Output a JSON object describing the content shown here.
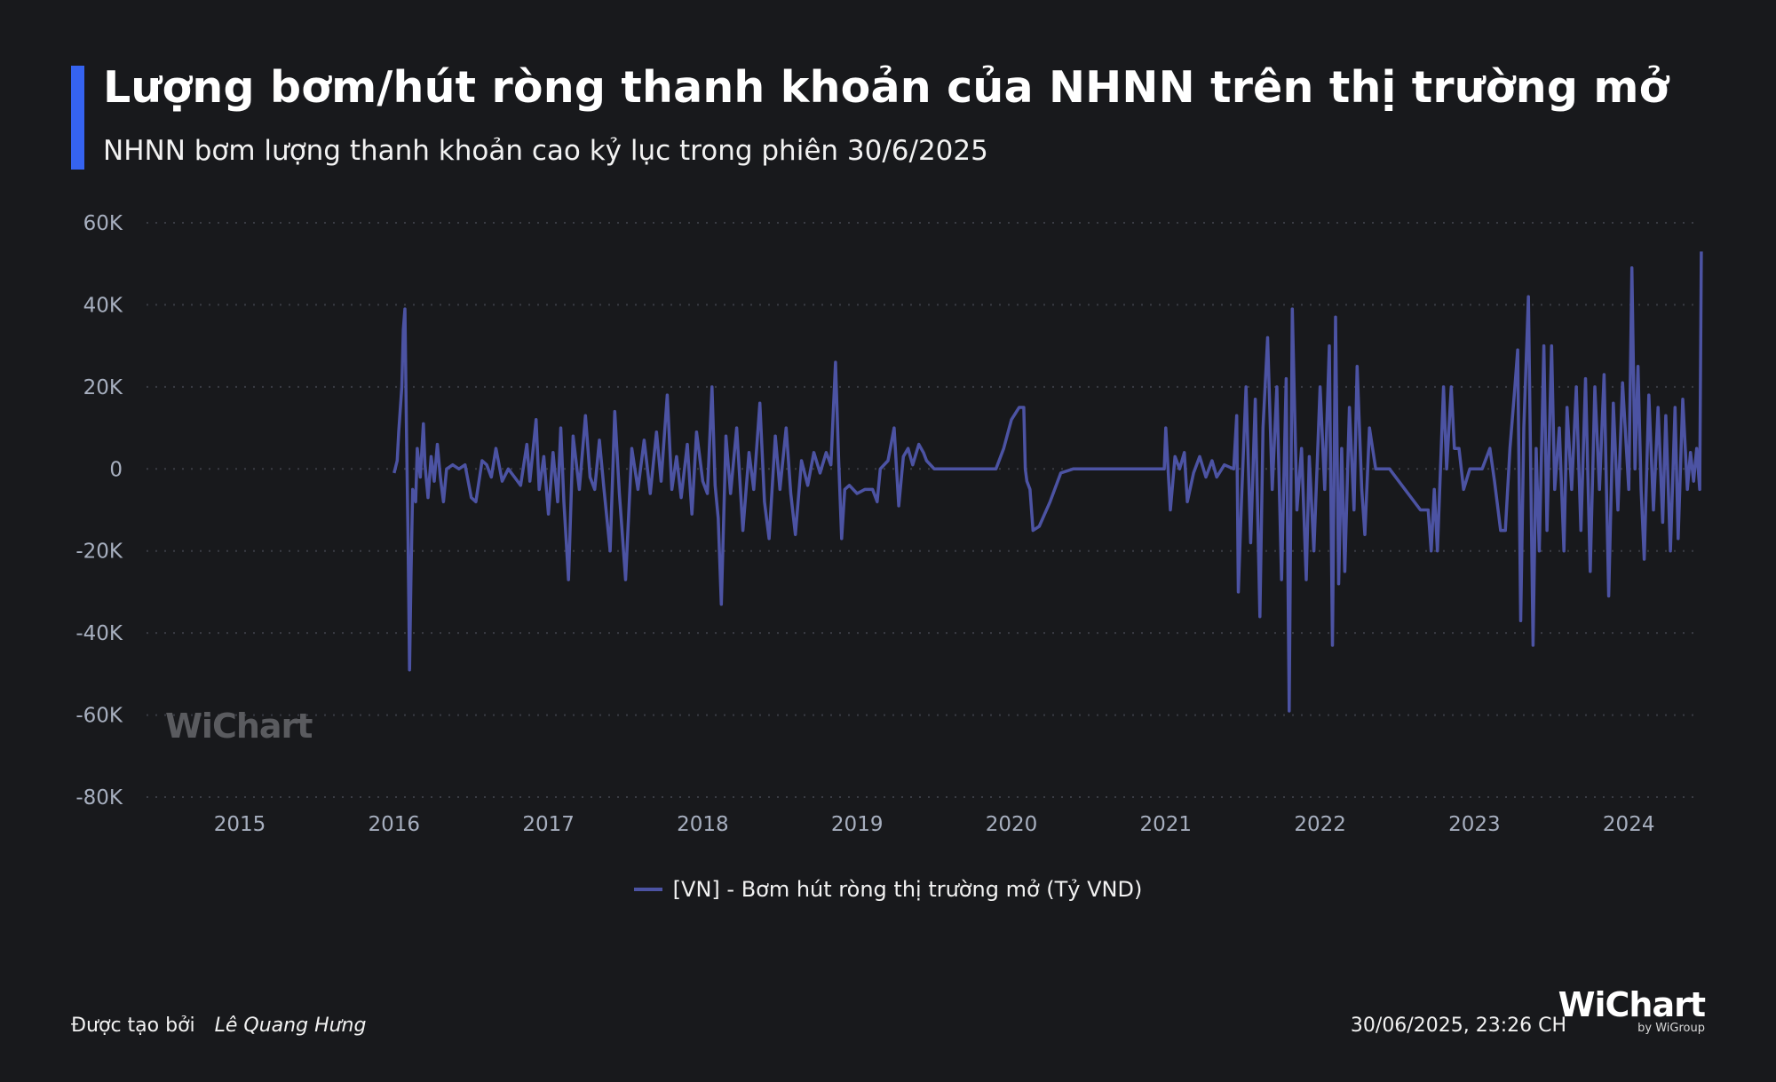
{
  "header": {
    "title": "Lượng bơm/hút ròng thanh khoản của NHNN trên thị trường mở",
    "subtitle": "NHNN bơm lượng thanh khoản cao kỷ lục trong phiên 30/6/2025",
    "accent_color": "#3563f0"
  },
  "watermark": {
    "text": "WiChart"
  },
  "legend": {
    "label": "[VN] - Bơm hút ròng thị trường mở (Tỷ VND)",
    "color": "#4c53a3"
  },
  "footer": {
    "created_by_label": "Được tạo bởi",
    "author": "Lê Quang Hưng",
    "timestamp": "30/06/2025, 23:26 CH",
    "brand_name": "WiChart",
    "brand_sub": "by WiGroup"
  },
  "chart_data": {
    "type": "line",
    "title": "Lượng bơm/hút ròng thanh khoản của NHNN trên thị trường mở",
    "subtitle": "NHNN bơm lượng thanh khoản cao kỷ lục trong phiên 30/6/2025",
    "xlabel": "",
    "ylabel": "",
    "x_ticks": [
      "2015",
      "2016",
      "2017",
      "2018",
      "2019",
      "2020",
      "2021",
      "2022",
      "2023",
      "2024"
    ],
    "y_ticks": [
      "60K",
      "40K",
      "20K",
      "0",
      "-20K",
      "-40K",
      "-60K",
      "-80K"
    ],
    "ylim": [
      -80000,
      60000
    ],
    "xlim": [
      2014.4,
      2024.47
    ],
    "grid": "horizontal-dotted",
    "legend_position": "bottom-center",
    "series": [
      {
        "name": "[VN] - Bơm hút ròng thị trường mở (Tỷ VND)",
        "color": "#4c53a3",
        "points": [
          [
            2016.0,
            -1000
          ],
          [
            2016.02,
            2000
          ],
          [
            2016.03,
            9000
          ],
          [
            2016.05,
            20000
          ],
          [
            2016.06,
            34000
          ],
          [
            2016.07,
            39000
          ],
          [
            2016.08,
            10000
          ],
          [
            2016.09,
            -15000
          ],
          [
            2016.1,
            -49000
          ],
          [
            2016.11,
            -25000
          ],
          [
            2016.12,
            -5000
          ],
          [
            2016.14,
            -8000
          ],
          [
            2016.15,
            5000
          ],
          [
            2016.17,
            -2000
          ],
          [
            2016.19,
            11000
          ],
          [
            2016.2,
            1000
          ],
          [
            2016.22,
            -7000
          ],
          [
            2016.24,
            3000
          ],
          [
            2016.26,
            -3000
          ],
          [
            2016.28,
            6000
          ],
          [
            2016.3,
            -2000
          ],
          [
            2016.32,
            -8000
          ],
          [
            2016.34,
            0
          ],
          [
            2016.38,
            1000
          ],
          [
            2016.42,
            0
          ],
          [
            2016.46,
            1000
          ],
          [
            2016.5,
            -7000
          ],
          [
            2016.53,
            -8000
          ],
          [
            2016.57,
            2000
          ],
          [
            2016.6,
            1000
          ],
          [
            2016.63,
            -2000
          ],
          [
            2016.66,
            5000
          ],
          [
            2016.7,
            -3000
          ],
          [
            2016.74,
            0
          ],
          [
            2016.78,
            -2000
          ],
          [
            2016.82,
            -4000
          ],
          [
            2016.86,
            6000
          ],
          [
            2016.88,
            -3000
          ],
          [
            2016.92,
            12000
          ],
          [
            2016.94,
            -5000
          ],
          [
            2016.97,
            3000
          ],
          [
            2017.0,
            -11000
          ],
          [
            2017.03,
            4000
          ],
          [
            2017.06,
            -8000
          ],
          [
            2017.08,
            10000
          ],
          [
            2017.1,
            -8000
          ],
          [
            2017.13,
            -27000
          ],
          [
            2017.16,
            8000
          ],
          [
            2017.2,
            -5000
          ],
          [
            2017.24,
            13000
          ],
          [
            2017.27,
            -2000
          ],
          [
            2017.3,
            -5000
          ],
          [
            2017.33,
            7000
          ],
          [
            2017.36,
            -5000
          ],
          [
            2017.4,
            -20000
          ],
          [
            2017.43,
            14000
          ],
          [
            2017.46,
            -6000
          ],
          [
            2017.5,
            -27000
          ],
          [
            2017.54,
            5000
          ],
          [
            2017.58,
            -5000
          ],
          [
            2017.62,
            7000
          ],
          [
            2017.66,
            -6000
          ],
          [
            2017.7,
            9000
          ],
          [
            2017.73,
            -3000
          ],
          [
            2017.77,
            18000
          ],
          [
            2017.8,
            -5000
          ],
          [
            2017.83,
            3000
          ],
          [
            2017.86,
            -7000
          ],
          [
            2017.9,
            6000
          ],
          [
            2017.93,
            -11000
          ],
          [
            2017.96,
            9000
          ],
          [
            2018.0,
            -3000
          ],
          [
            2018.03,
            -6000
          ],
          [
            2018.06,
            20000
          ],
          [
            2018.08,
            -4000
          ],
          [
            2018.1,
            -12000
          ],
          [
            2018.12,
            -33000
          ],
          [
            2018.15,
            8000
          ],
          [
            2018.18,
            -6000
          ],
          [
            2018.22,
            10000
          ],
          [
            2018.26,
            -15000
          ],
          [
            2018.3,
            4000
          ],
          [
            2018.33,
            -5000
          ],
          [
            2018.37,
            16000
          ],
          [
            2018.4,
            -8000
          ],
          [
            2018.43,
            -17000
          ],
          [
            2018.47,
            8000
          ],
          [
            2018.5,
            -5000
          ],
          [
            2018.54,
            10000
          ],
          [
            2018.57,
            -6000
          ],
          [
            2018.6,
            -16000
          ],
          [
            2018.64,
            2000
          ],
          [
            2018.68,
            -4000
          ],
          [
            2018.72,
            4000
          ],
          [
            2018.76,
            -1000
          ],
          [
            2018.8,
            4000
          ],
          [
            2018.83,
            1000
          ],
          [
            2018.86,
            26000
          ],
          [
            2018.88,
            3000
          ],
          [
            2018.9,
            -17000
          ],
          [
            2018.92,
            -5000
          ],
          [
            2018.95,
            -4000
          ],
          [
            2019.0,
            -6000
          ],
          [
            2019.05,
            -5000
          ],
          [
            2019.1,
            -5000
          ],
          [
            2019.13,
            -8000
          ],
          [
            2019.15,
            0
          ],
          [
            2019.2,
            2000
          ],
          [
            2019.24,
            10000
          ],
          [
            2019.27,
            -9000
          ],
          [
            2019.3,
            3000
          ],
          [
            2019.33,
            5000
          ],
          [
            2019.36,
            1000
          ],
          [
            2019.4,
            6000
          ],
          [
            2019.43,
            4000
          ],
          [
            2019.45,
            2000
          ],
          [
            2019.5,
            0
          ],
          [
            2019.6,
            0
          ],
          [
            2019.8,
            0
          ],
          [
            2019.9,
            0
          ],
          [
            2019.95,
            5000
          ],
          [
            2020.0,
            12000
          ],
          [
            2020.05,
            15000
          ],
          [
            2020.08,
            15000
          ],
          [
            2020.09,
            0
          ],
          [
            2020.1,
            -3000
          ],
          [
            2020.12,
            -5000
          ],
          [
            2020.14,
            -15000
          ],
          [
            2020.18,
            -14000
          ],
          [
            2020.25,
            -8000
          ],
          [
            2020.32,
            -1000
          ],
          [
            2020.4,
            0
          ],
          [
            2020.6,
            0
          ],
          [
            2020.8,
            0
          ],
          [
            2020.99,
            0
          ],
          [
            2021.0,
            10000
          ],
          [
            2021.03,
            -10000
          ],
          [
            2021.06,
            3000
          ],
          [
            2021.09,
            0
          ],
          [
            2021.12,
            4000
          ],
          [
            2021.14,
            -8000
          ],
          [
            2021.18,
            -1000
          ],
          [
            2021.22,
            3000
          ],
          [
            2021.26,
            -2000
          ],
          [
            2021.3,
            2000
          ],
          [
            2021.33,
            -2000
          ],
          [
            2021.38,
            1000
          ],
          [
            2021.44,
            0
          ],
          [
            2021.46,
            13000
          ],
          [
            2021.47,
            -30000
          ],
          [
            2021.49,
            -8000
          ],
          [
            2021.52,
            20000
          ],
          [
            2021.55,
            -18000
          ],
          [
            2021.58,
            17000
          ],
          [
            2021.61,
            -36000
          ],
          [
            2021.63,
            10000
          ],
          [
            2021.66,
            32000
          ],
          [
            2021.69,
            -5000
          ],
          [
            2021.72,
            20000
          ],
          [
            2021.75,
            -27000
          ],
          [
            2021.78,
            22000
          ],
          [
            2021.8,
            -59000
          ],
          [
            2021.82,
            39000
          ],
          [
            2021.85,
            -10000
          ],
          [
            2021.88,
            5000
          ],
          [
            2021.91,
            -27000
          ],
          [
            2021.93,
            3000
          ],
          [
            2021.96,
            -20000
          ],
          [
            2022.0,
            20000
          ],
          [
            2022.03,
            -5000
          ],
          [
            2022.06,
            30000
          ],
          [
            2022.08,
            -43000
          ],
          [
            2022.1,
            37000
          ],
          [
            2022.12,
            -28000
          ],
          [
            2022.14,
            5000
          ],
          [
            2022.16,
            -25000
          ],
          [
            2022.19,
            15000
          ],
          [
            2022.22,
            -10000
          ],
          [
            2022.24,
            25000
          ],
          [
            2022.27,
            -5000
          ],
          [
            2022.29,
            -16000
          ],
          [
            2022.32,
            10000
          ],
          [
            2022.34,
            5000
          ],
          [
            2022.36,
            0
          ],
          [
            2022.45,
            0
          ],
          [
            2022.55,
            -5000
          ],
          [
            2022.65,
            -10000
          ],
          [
            2022.7,
            -10000
          ],
          [
            2022.72,
            -20000
          ],
          [
            2022.74,
            -5000
          ],
          [
            2022.76,
            -20000
          ],
          [
            2022.8,
            20000
          ],
          [
            2022.82,
            0
          ],
          [
            2022.85,
            20000
          ],
          [
            2022.87,
            5000
          ],
          [
            2022.9,
            5000
          ],
          [
            2022.93,
            -5000
          ],
          [
            2022.97,
            0
          ],
          [
            2023.05,
            0
          ],
          [
            2023.1,
            5000
          ],
          [
            2023.13,
            -3000
          ],
          [
            2023.17,
            -15000
          ],
          [
            2023.2,
            -15000
          ],
          [
            2023.23,
            5000
          ],
          [
            2023.26,
            19000
          ],
          [
            2023.28,
            29000
          ],
          [
            2023.3,
            -37000
          ],
          [
            2023.32,
            10000
          ],
          [
            2023.35,
            42000
          ],
          [
            2023.38,
            -43000
          ],
          [
            2023.4,
            5000
          ],
          [
            2023.42,
            -20000
          ],
          [
            2023.45,
            30000
          ],
          [
            2023.47,
            -15000
          ],
          [
            2023.5,
            30000
          ],
          [
            2023.52,
            -5000
          ],
          [
            2023.55,
            10000
          ],
          [
            2023.58,
            -20000
          ],
          [
            2023.6,
            15000
          ],
          [
            2023.63,
            -5000
          ],
          [
            2023.66,
            20000
          ],
          [
            2023.69,
            -15000
          ],
          [
            2023.72,
            22000
          ],
          [
            2023.75,
            -25000
          ],
          [
            2023.78,
            20000
          ],
          [
            2023.81,
            -5000
          ],
          [
            2023.84,
            23000
          ],
          [
            2023.87,
            -31000
          ],
          [
            2023.9,
            16000
          ],
          [
            2023.93,
            -10000
          ],
          [
            2023.96,
            21000
          ],
          [
            2024.0,
            -5000
          ],
          [
            2024.02,
            49000
          ],
          [
            2024.04,
            0
          ],
          [
            2024.06,
            25000
          ],
          [
            2024.08,
            -5000
          ],
          [
            2024.1,
            -22000
          ],
          [
            2024.13,
            18000
          ],
          [
            2024.16,
            -10000
          ],
          [
            2024.19,
            15000
          ],
          [
            2024.22,
            -13000
          ],
          [
            2024.24,
            13000
          ],
          [
            2024.27,
            -20000
          ],
          [
            2024.3,
            15000
          ],
          [
            2024.32,
            -17000
          ],
          [
            2024.35,
            17000
          ],
          [
            2024.38,
            -5000
          ],
          [
            2024.4,
            4000
          ],
          [
            2024.42,
            -3000
          ],
          [
            2024.44,
            5000
          ],
          [
            2024.46,
            -5000
          ],
          [
            2024.47,
            53000
          ]
        ]
      }
    ]
  }
}
